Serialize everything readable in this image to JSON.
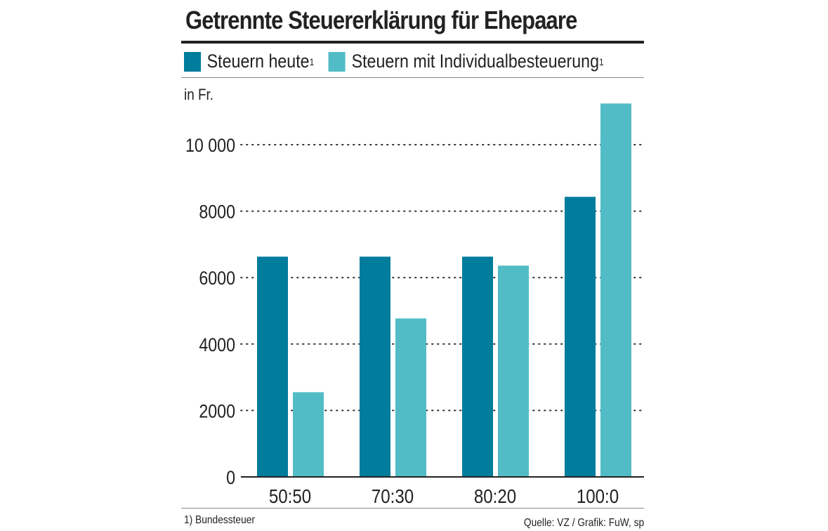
{
  "chart_data": {
    "type": "bar",
    "title": "Getrennte Steuererklärung für Ehepaare",
    "ylabel": "in Fr.",
    "categories": [
      "50:50",
      "70:30",
      "80:20",
      "100:0"
    ],
    "series": [
      {
        "name": "Steuern heute",
        "superscript": "1",
        "color": "#007c9c",
        "values": [
          6630,
          6630,
          6630,
          8430
        ]
      },
      {
        "name": "Steuern mit Individualbesteuerung",
        "superscript": "1",
        "color": "#52bcc6",
        "values": [
          2550,
          4770,
          6360,
          11240
        ]
      }
    ],
    "ylim": [
      0,
      11500
    ],
    "yticks": [
      0,
      2000,
      4000,
      6000,
      8000,
      10000
    ],
    "ytick_labels": [
      "0",
      "2000",
      "4000",
      "6000",
      "8000",
      "10 000"
    ],
    "grid": "dotted horizontal",
    "legend_placement": "top-left"
  },
  "footnote": "1) Bundessteuer",
  "source": "Quelle: VZ / Grafik: FuW, sp"
}
